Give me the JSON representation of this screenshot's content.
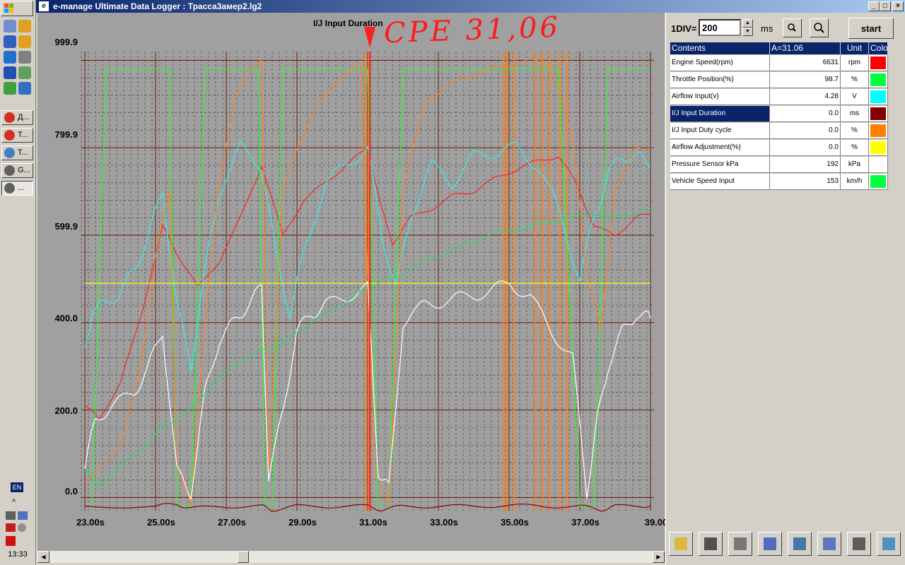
{
  "taskbar": {
    "quick_launch_icons": [
      "browser-icon",
      "pencil-icon",
      "media-icon",
      "clock-icon",
      "ie-icon",
      "calc-icon",
      "save-icon",
      "device-icon",
      "chrome-icon",
      "app-icon"
    ],
    "tasks": [
      {
        "label": "Д...",
        "icon": "chrome-icon",
        "active": false
      },
      {
        "label": "Т...",
        "icon": "chrome-icon",
        "active": false
      },
      {
        "label": "Т...",
        "icon": "app-icon",
        "active": false
      },
      {
        "label": "G...",
        "icon": "window-icon",
        "active": false
      },
      {
        "label": "...",
        "icon": "window-icon",
        "active": true
      }
    ],
    "language": "EN",
    "tray_chevron": "^",
    "clock": "13:33"
  },
  "window": {
    "title": "e-manage Ultimate Data Logger : Трасса3амер2.lg2",
    "controls": {
      "minimize": "_",
      "maximize": "□",
      "close": "×"
    }
  },
  "chart": {
    "title": "I/J Input Duration",
    "handwritten_note": "CPE 31,06",
    "y_ticks": [
      "999.9",
      "799.9",
      "599.9",
      "400.0",
      "200.0",
      "0.0"
    ],
    "x_ticks": [
      "23.00s",
      "25.00s",
      "27.00s",
      "29.00s",
      "31.00s",
      "33.00s",
      "35.00s",
      "37.00s",
      "39.00"
    ]
  },
  "chart_data": {
    "type": "line",
    "xlim": [
      22.9,
      39.1
    ],
    "ylim": [
      -30,
      1020
    ],
    "x_ticks": [
      23,
      25,
      27,
      29,
      31,
      33,
      35,
      37,
      39
    ],
    "y_ticks": [
      0,
      200,
      400,
      600,
      800,
      1000
    ],
    "cursor_x": 31.06,
    "series": [
      {
        "name": "Engine Speed(rpm)",
        "color": "#ff2020",
        "x": [
          23.0,
          23.4,
          24.0,
          24.6,
          25.2,
          25.6,
          26.2,
          26.8,
          27.4,
          28.0,
          28.6,
          29.2,
          29.8,
          30.4,
          31.0,
          31.4,
          31.7,
          32.2,
          32.8,
          33.4,
          34.0,
          34.6,
          35.2,
          35.8,
          36.4,
          36.9,
          37.4,
          38.0,
          38.6,
          39.0
        ],
        "y": [
          210,
          180,
          260,
          420,
          620,
          560,
          480,
          540,
          640,
          760,
          600,
          680,
          720,
          760,
          800,
          660,
          580,
          640,
          660,
          690,
          700,
          730,
          750,
          770,
          780,
          720,
          620,
          600,
          640,
          650
        ]
      },
      {
        "name": "Throttle Position(%)",
        "color": "#20ff20",
        "x": [
          23.0,
          23.2,
          23.6,
          24.0,
          24.2,
          24.6,
          25.0,
          25.4,
          25.6,
          26.0,
          26.4,
          26.8,
          27.2,
          27.6,
          27.9,
          28.1,
          28.3,
          28.6,
          29.0,
          29.4,
          29.8,
          30.2,
          30.6,
          31.0,
          31.3,
          31.6,
          32.0,
          32.4,
          32.8,
          33.2,
          33.6,
          34.0,
          34.6,
          35.2,
          35.8,
          36.4,
          37.0,
          37.4,
          37.8,
          38.2,
          38.6,
          39.0
        ],
        "y": [
          -20,
          -20,
          980,
          980,
          980,
          980,
          980,
          980,
          -20,
          -20,
          980,
          980,
          980,
          980,
          980,
          -20,
          -20,
          980,
          980,
          980,
          980,
          980,
          980,
          980,
          -20,
          -20,
          980,
          980,
          980,
          980,
          980,
          980,
          980,
          980,
          980,
          980,
          -20,
          -20,
          980,
          980,
          980,
          980
        ]
      },
      {
        "name": "Airflow Input(v)",
        "color": "#30f0f0",
        "x": [
          23.0,
          23.2,
          23.6,
          24.0,
          24.4,
          24.8,
          25.2,
          25.6,
          26.0,
          26.4,
          26.8,
          27.4,
          28.0,
          28.4,
          28.8,
          29.2,
          29.8,
          30.4,
          31.0,
          31.4,
          31.8,
          32.2,
          32.8,
          33.4,
          34.0,
          34.6,
          35.2,
          35.8,
          36.4,
          37.0,
          37.4,
          37.8,
          38.2,
          38.6,
          39.0
        ],
        "y": [
          330,
          430,
          440,
          470,
          520,
          600,
          700,
          440,
          300,
          520,
          700,
          800,
          760,
          560,
          420,
          560,
          720,
          760,
          800,
          600,
          480,
          640,
          760,
          720,
          780,
          790,
          800,
          760,
          660,
          500,
          640,
          740,
          780,
          780,
          760
        ]
      },
      {
        "name": "I/J Input Duration",
        "color": "#8b0000",
        "x": [
          23.0,
          25.0,
          25.6,
          26.0,
          27.0,
          28.0,
          28.3,
          29.0,
          30.0,
          31.0,
          31.4,
          32.0,
          33.0,
          34.0,
          35.0,
          36.0,
          37.0,
          37.6,
          38.0,
          39.0
        ],
        "y": [
          -20,
          -20,
          -15,
          -25,
          -20,
          -20,
          -28,
          -20,
          -20,
          -20,
          -28,
          -20,
          -20,
          -20,
          -18,
          -20,
          -20,
          -28,
          -20,
          -20
        ]
      },
      {
        "name": "I/J Input Duty cycle",
        "color": "#ff8020",
        "x": [
          23.0,
          23.4,
          24.0,
          24.6,
          25.0,
          25.4,
          25.6,
          26.0,
          26.4,
          26.8,
          27.2,
          27.6,
          28.0,
          28.2,
          28.6,
          29.0,
          29.6,
          30.2,
          30.8,
          31.2,
          31.6,
          32.0,
          32.6,
          33.2,
          33.8,
          34.4,
          35.0,
          35.6,
          36.2,
          36.8,
          37.2,
          37.6,
          38.0,
          38.6,
          39.0
        ],
        "y": [
          40,
          60,
          120,
          300,
          560,
          700,
          80,
          -20,
          400,
          720,
          900,
          980,
          1000,
          60,
          700,
          800,
          900,
          960,
          990,
          60,
          -20,
          700,
          900,
          940,
          960,
          980,
          990,
          1000,
          990,
          820,
          520,
          380,
          700,
          800,
          800
        ]
      },
      {
        "name": "Airflow Adjustment(%)",
        "color": "#ffff00",
        "x": [
          23.0,
          39.0
        ],
        "y": [
          490,
          490
        ]
      },
      {
        "name": "Pressure Sensor kPa",
        "color": "#ffffff",
        "x": [
          23.0,
          23.3,
          23.8,
          24.4,
          24.8,
          25.2,
          25.6,
          26.0,
          26.4,
          26.8,
          27.2,
          27.6,
          28.0,
          28.2,
          28.6,
          29.0,
          29.4,
          29.8,
          30.4,
          31.0,
          31.3,
          31.6,
          32.0,
          32.6,
          33.2,
          33.8,
          34.4,
          35.0,
          35.6,
          36.2,
          36.8,
          37.2,
          37.5,
          37.8,
          38.2,
          38.6,
          39.0
        ],
        "y": [
          70,
          180,
          210,
          240,
          300,
          380,
          60,
          10,
          240,
          360,
          400,
          440,
          480,
          40,
          200,
          380,
          420,
          440,
          460,
          480,
          60,
          20,
          400,
          440,
          450,
          460,
          470,
          490,
          460,
          380,
          320,
          10,
          180,
          300,
          380,
          420,
          410
        ]
      },
      {
        "name": "Vehicle Speed Input",
        "color": "#20e060",
        "x": [
          23.0,
          23.4,
          24.0,
          24.6,
          25.2,
          25.6,
          26.0,
          26.6,
          27.2,
          27.8,
          28.2,
          28.6,
          29.0,
          29.6,
          30.2,
          30.8,
          31.2,
          31.6,
          32.0,
          32.6,
          33.2,
          33.8,
          34.4,
          35.0,
          35.6,
          36.2,
          36.8,
          37.4,
          38.0,
          38.6,
          39.0
        ],
        "y": [
          60,
          30,
          70,
          110,
          160,
          180,
          200,
          260,
          300,
          330,
          340,
          350,
          380,
          410,
          440,
          470,
          490,
          500,
          510,
          540,
          560,
          580,
          600,
          610,
          620,
          630,
          640,
          650,
          640,
          650,
          660
        ]
      }
    ]
  },
  "panel": {
    "div_label": "1DIV=",
    "div_value": "200",
    "unit_label": "ms",
    "start_label": "start",
    "table": {
      "headers": [
        "Contents",
        "A=31.06",
        "Unit",
        "Colo"
      ],
      "rows": [
        {
          "name": "Engine Speed(rpm)",
          "value": "6631",
          "unit": "rpm",
          "color": "#ff0000"
        },
        {
          "name": "Throttle Position(%)",
          "value": "98.7",
          "unit": "%",
          "color": "#00ff40"
        },
        {
          "name": "Airflow Input(v)",
          "value": "4.28",
          "unit": "V",
          "color": "#00ffff"
        },
        {
          "name": "I/J Input Duration",
          "value": "0.0",
          "unit": "ms",
          "color": "#800000"
        },
        {
          "name": "I/J Input Duty cycle",
          "value": "0.0",
          "unit": "%",
          "color": "#ff8000"
        },
        {
          "name": "Airflow Adjustment(%)",
          "value": "0.0",
          "unit": "%",
          "color": "#ffff00"
        },
        {
          "name": "Pressure Sensor kPa",
          "value": "192",
          "unit": "kPa",
          "color": "#ffffff"
        },
        {
          "name": "Vehicle Speed Input",
          "value": "153",
          "unit": "km/h",
          "color": "#00ff40"
        }
      ]
    },
    "toolbar_icons": [
      "open-folder-icon",
      "save-icon",
      "print-icon",
      "export-icon",
      "display-icon",
      "graph-ab-icon",
      "list-icon",
      "compare-icon"
    ]
  }
}
